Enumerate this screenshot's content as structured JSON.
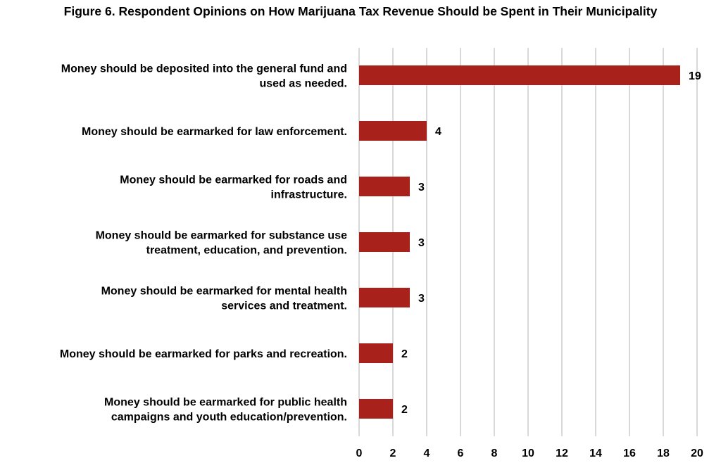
{
  "chart_data": {
    "type": "bar",
    "orientation": "horizontal",
    "title": "Figure 6. Respondent Opinions on How Marijuana Tax Revenue Should be Spent in Their Municipality",
    "categories": [
      [
        "Money should be deposited into the general fund and",
        "used as needed."
      ],
      [
        "Money should be earmarked for law enforcement."
      ],
      [
        "Money should be earmarked for roads and",
        "infrastructure."
      ],
      [
        "Money should be earmarked for substance use",
        "treatment, education, and prevention."
      ],
      [
        "Money should be earmarked for mental health",
        "services and treatment."
      ],
      [
        "Money should be earmarked for parks and recreation."
      ],
      [
        "Money should be earmarked for public health",
        "campaigns and youth education/prevention."
      ]
    ],
    "values": [
      19,
      4,
      3,
      3,
      3,
      2,
      2
    ],
    "xlim": [
      0,
      20
    ],
    "xticks": [
      0,
      2,
      4,
      6,
      8,
      10,
      12,
      14,
      16,
      18,
      20
    ],
    "grid": true,
    "bar_color": "#a8221b",
    "grid_color": "#d9d9d9"
  }
}
